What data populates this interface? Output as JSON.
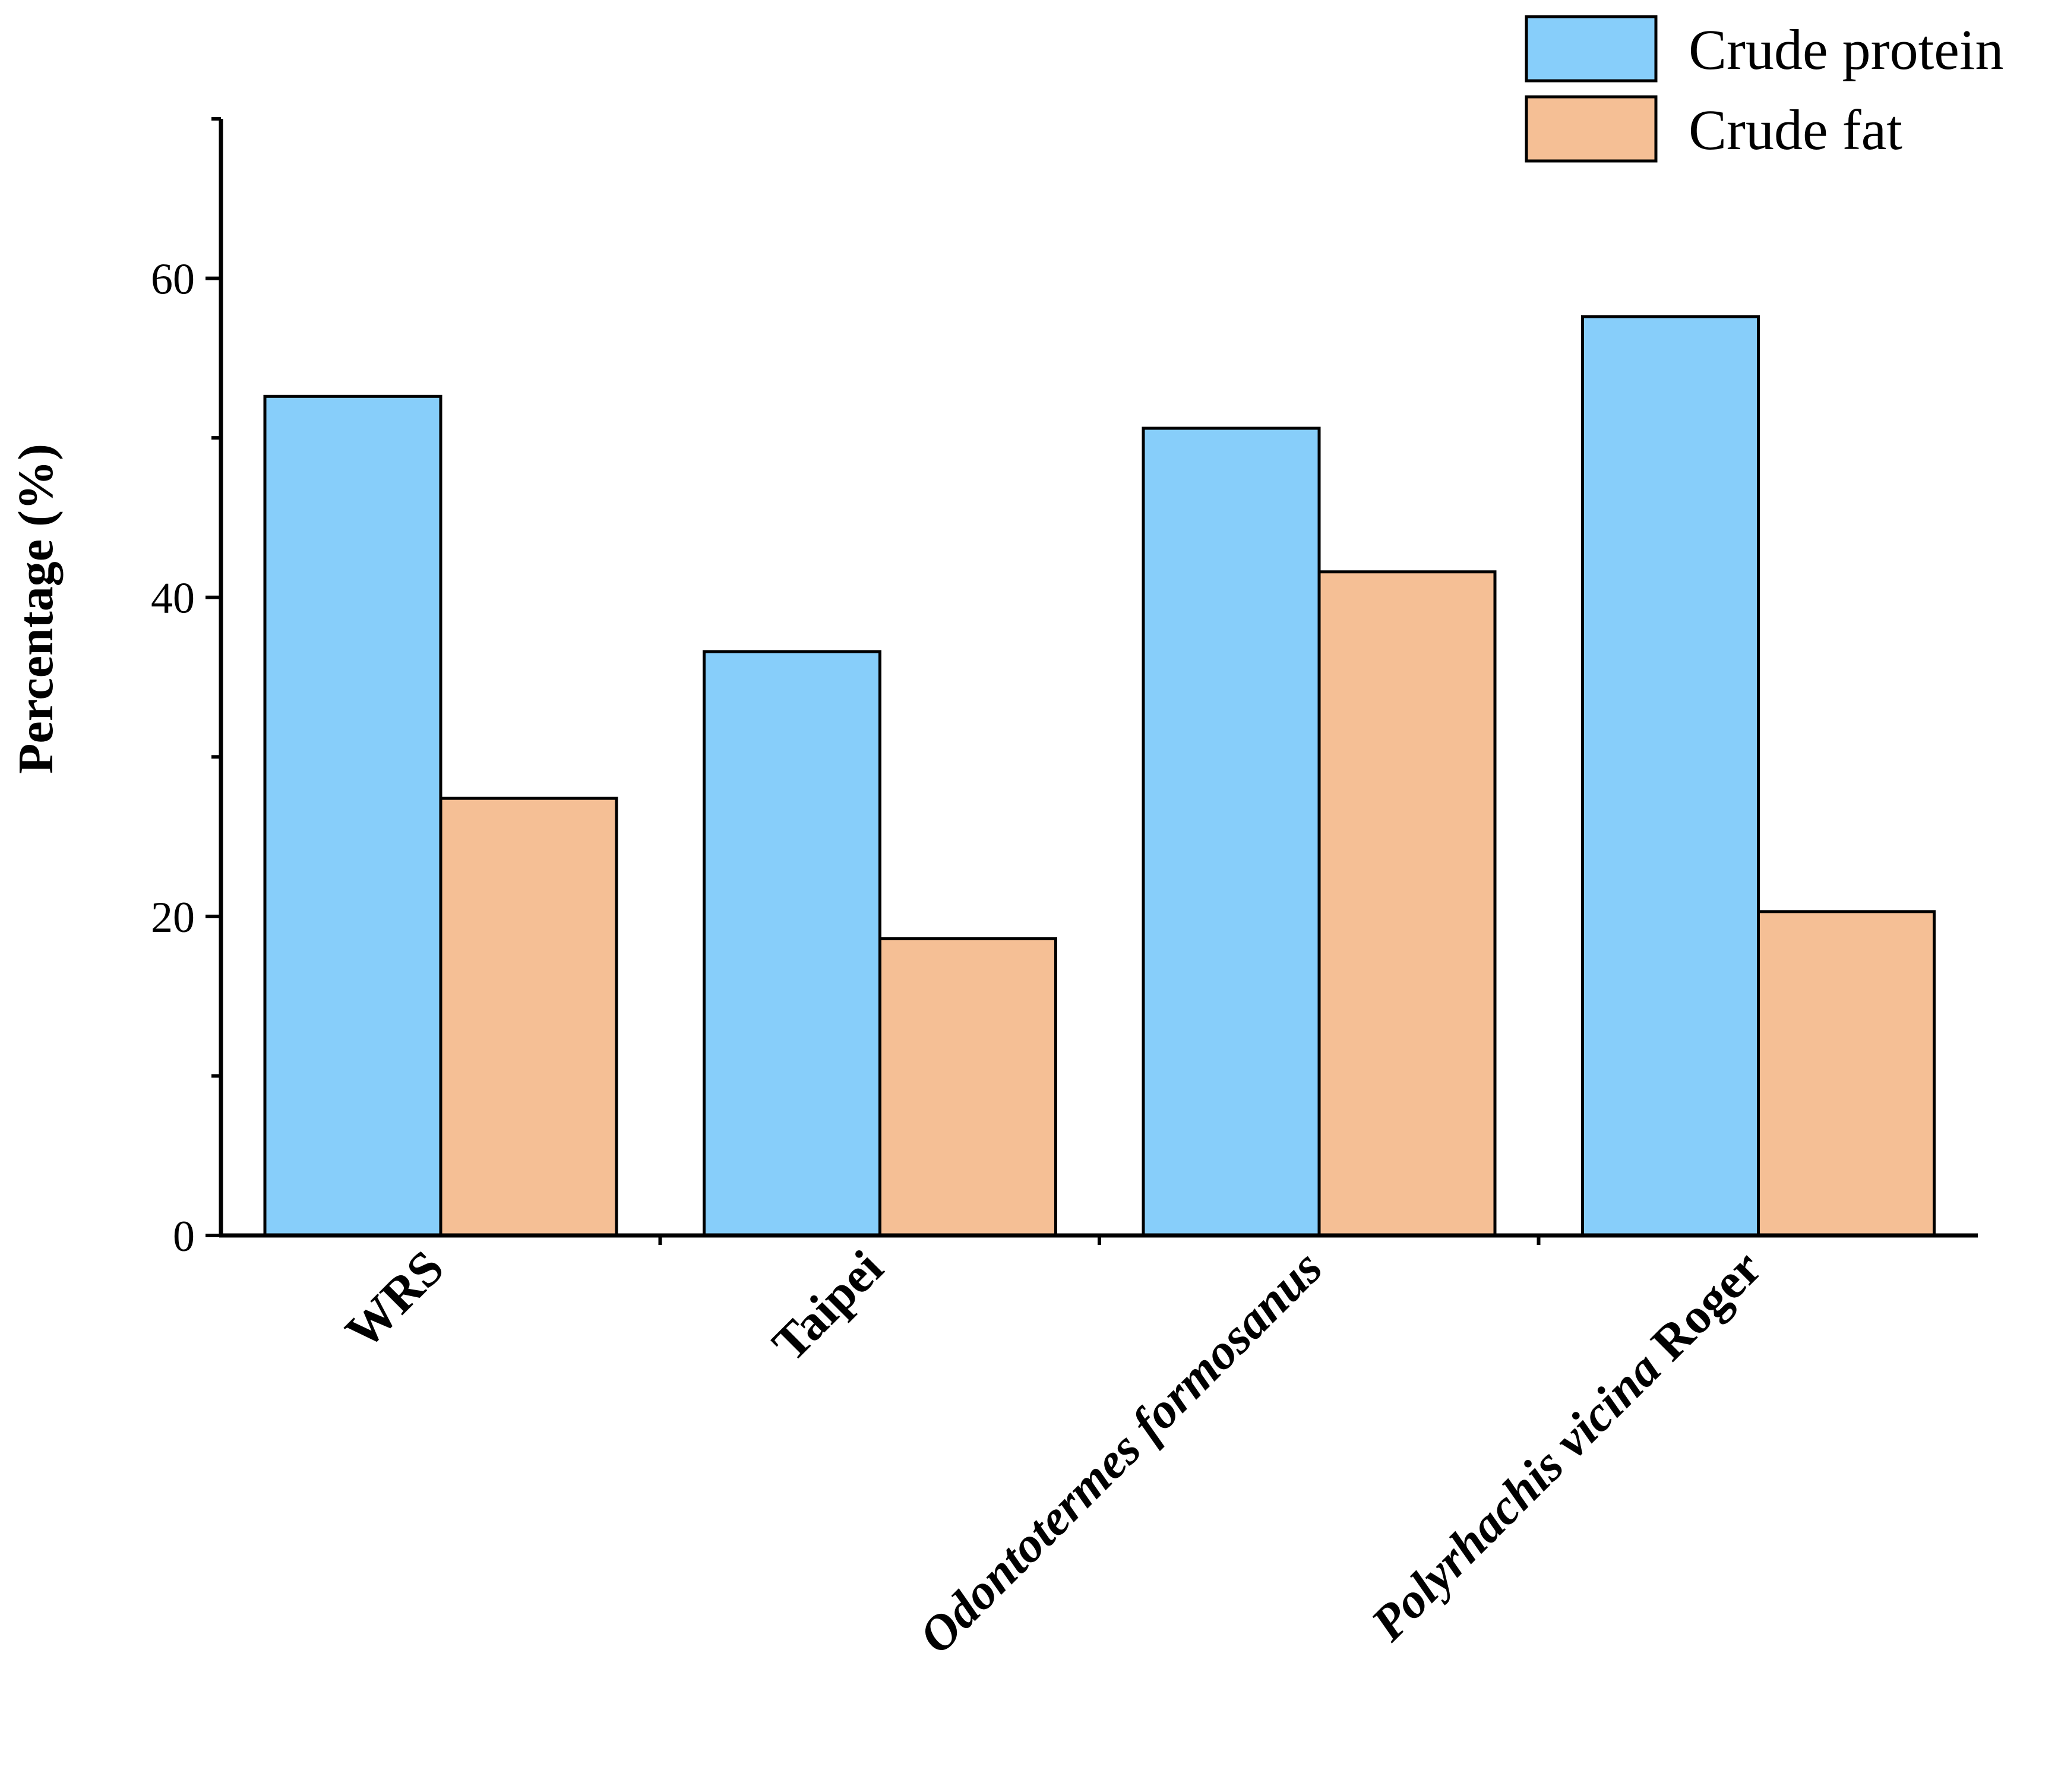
{
  "chart_data": {
    "type": "bar",
    "title": "",
    "xlabel": "",
    "ylabel": "Percentage (%)",
    "ylim": [
      0,
      70
    ],
    "yticks": [
      0,
      20,
      40,
      60
    ],
    "categories": [
      {
        "parts": [
          {
            "text": "WRS",
            "italic": false
          }
        ]
      },
      {
        "parts": [
          {
            "text": "Taipei",
            "italic": false
          }
        ]
      },
      {
        "parts": [
          {
            "text": "Odontotermes formosanus",
            "italic": true
          }
        ]
      },
      {
        "parts": [
          {
            "text": "Polyrhachis vicina",
            "italic": true
          },
          {
            "text": " Roger",
            "italic": false
          }
        ]
      }
    ],
    "series": [
      {
        "name": "Crude protein",
        "color": "#87CEFA",
        "values": [
          52.6,
          36.6,
          50.6,
          57.6
        ]
      },
      {
        "name": "Crude fat",
        "color": "#F5BF95",
        "values": [
          27.4,
          18.6,
          41.6,
          20.3
        ]
      }
    ],
    "grid": false,
    "legend_position": "top-right"
  }
}
